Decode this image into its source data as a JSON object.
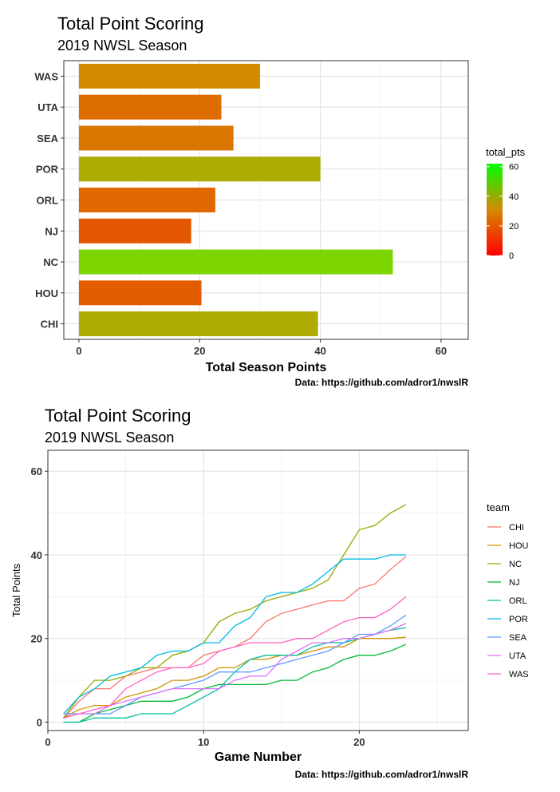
{
  "charts": [
    {
      "title": "Total Point Scoring",
      "subtitle": "2019 NWSL Season",
      "caption": "Data: https://github.com/adror1/nwslR"
    },
    {
      "title": "Total Point Scoring",
      "subtitle": "2019 NWSL Season",
      "caption": "Data: https://github.com/adror1/nwslR"
    }
  ],
  "chart_data": [
    {
      "type": "bar",
      "orientation": "horizontal",
      "title": "Total Point Scoring",
      "subtitle": "2019 NWSL Season",
      "xlabel": "Total Season Points",
      "ylabel": "",
      "categories": [
        "WAS",
        "UTA",
        "SEA",
        "POR",
        "ORL",
        "NJ",
        "NC",
        "HOU",
        "CHI"
      ],
      "values": [
        30,
        23.6,
        25.6,
        40,
        22.6,
        18.6,
        52,
        20.3,
        39.6
      ],
      "xlim": [
        0,
        60
      ],
      "xticks": [
        0,
        20,
        40,
        60
      ],
      "grid": true,
      "legend": {
        "title": "total_pts",
        "type": "colorbar",
        "placement": "right",
        "ticks": [
          0,
          20,
          40,
          60
        ],
        "colors": [
          "#ff0000",
          "#00ff00"
        ]
      }
    },
    {
      "type": "line",
      "title": "Total Point Scoring",
      "subtitle": "2019 NWSL Season",
      "xlabel": "Game Number",
      "ylabel": "Total Points",
      "xlim": [
        0,
        27
      ],
      "ylim": [
        -2,
        65
      ],
      "xticks": [
        0,
        10,
        20
      ],
      "yticks": [
        0,
        20,
        40,
        60
      ],
      "grid": true,
      "legend": {
        "title": "team",
        "placement": "right"
      },
      "x": [
        1,
        2,
        3,
        4,
        5,
        6,
        7,
        8,
        9,
        10,
        11,
        12,
        13,
        14,
        15,
        16,
        17,
        18,
        19,
        20,
        21,
        22,
        23
      ],
      "series": [
        {
          "name": "CHI",
          "color": "#f8766d",
          "values": [
            1,
            5,
            8,
            8,
            11,
            12,
            13,
            13,
            13,
            16,
            17,
            18,
            20,
            24,
            26,
            27,
            28,
            29,
            29,
            32,
            33,
            36.5,
            39.6
          ]
        },
        {
          "name": "HOU",
          "color": "#d39200",
          "values": [
            1,
            3,
            4,
            4,
            6,
            7,
            8,
            10,
            10,
            11,
            13,
            13,
            15,
            15,
            16,
            16,
            17,
            18,
            18,
            20,
            20,
            20,
            20.3
          ]
        },
        {
          "name": "NC",
          "color": "#93aa00",
          "values": [
            1,
            6,
            10,
            10,
            11,
            13,
            13,
            16,
            17,
            19,
            24,
            26,
            27,
            29,
            30,
            31,
            32,
            34,
            40,
            46,
            47,
            50,
            52
          ]
        },
        {
          "name": "NJ",
          "color": "#00ba38",
          "values": [
            0,
            0,
            2,
            3,
            4,
            5,
            5,
            5,
            6,
            8,
            9,
            9,
            9,
            9,
            10,
            10,
            12,
            13,
            15,
            16,
            16,
            17,
            18.6
          ]
        },
        {
          "name": "ORL",
          "color": "#00c19f",
          "values": [
            0,
            0,
            1,
            1,
            1,
            2,
            2,
            2,
            4,
            6,
            8,
            12,
            15,
            16,
            16,
            16,
            18,
            19,
            19,
            20,
            21,
            22,
            22.6
          ]
        },
        {
          "name": "POR",
          "color": "#00b9e3",
          "values": [
            2,
            6,
            8,
            11,
            12,
            13,
            16,
            17,
            17,
            19,
            19,
            23,
            25,
            30,
            31,
            31,
            33,
            36,
            39,
            39,
            39,
            40,
            40
          ]
        },
        {
          "name": "SEA",
          "color": "#619cff",
          "values": [
            2,
            2,
            2,
            2,
            4,
            6,
            7,
            8,
            9,
            10,
            12,
            12,
            12,
            13,
            14,
            15,
            16,
            17,
            19,
            21,
            21,
            23,
            25.6
          ]
        },
        {
          "name": "UTA",
          "color": "#db72fb",
          "values": [
            1,
            2,
            2,
            4,
            5,
            6,
            7,
            8,
            8,
            8,
            8,
            10,
            11,
            11,
            15,
            17,
            19,
            19,
            20,
            20,
            21,
            22,
            23.6
          ]
        },
        {
          "name": "WAS",
          "color": "#ff61c3",
          "values": [
            1,
            2,
            3,
            4,
            8,
            10,
            12,
            13,
            13,
            14,
            17,
            18,
            19,
            19,
            19,
            20,
            20,
            22,
            24,
            25,
            25,
            27,
            30
          ]
        }
      ]
    }
  ]
}
